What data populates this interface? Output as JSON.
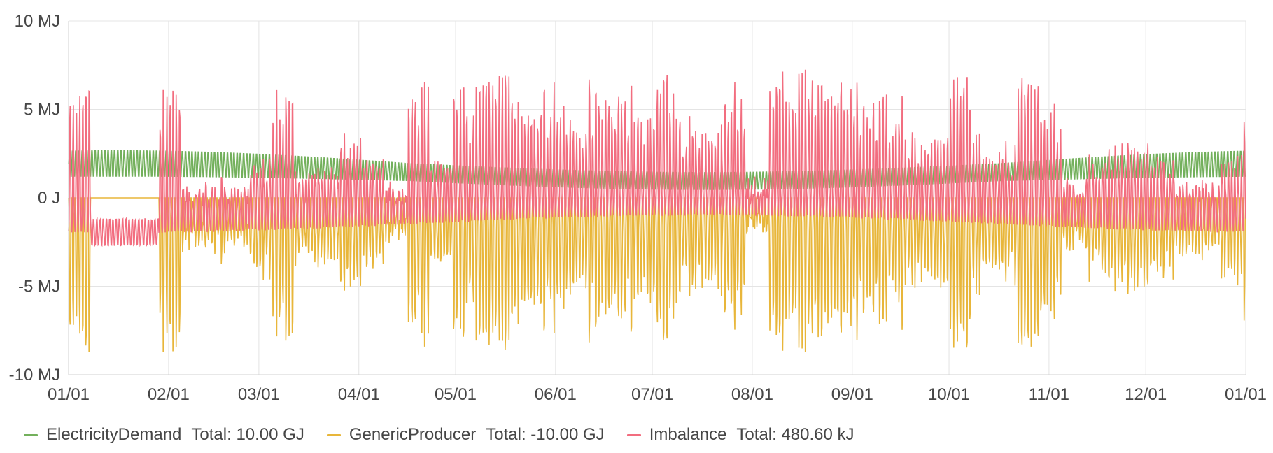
{
  "chart_data": {
    "type": "line",
    "title": "",
    "xlabel": "",
    "ylabel": "",
    "ylim": [
      -10,
      10
    ],
    "y_unit": "MJ",
    "y_ticks": [
      {
        "value": 10,
        "label": "10 MJ"
      },
      {
        "value": 5,
        "label": "5 MJ"
      },
      {
        "value": 0,
        "label": "0 J"
      },
      {
        "value": -5,
        "label": "-5 MJ"
      },
      {
        "value": -10,
        "label": "-10 MJ"
      }
    ],
    "x_ticks": [
      "01/01",
      "02/01",
      "03/01",
      "04/01",
      "05/01",
      "06/01",
      "07/01",
      "08/01",
      "09/01",
      "10/01",
      "11/01",
      "12/01",
      "01/01"
    ],
    "x_range": [
      "2023-01-01",
      "2024-01-01"
    ],
    "grid": true,
    "legend_position": "bottom-left",
    "series": [
      {
        "name": "ElectricityDemand",
        "total_label": "Total: 10.00 GJ",
        "color": "#73b05c",
        "min": 0.5,
        "max": 2.5
      },
      {
        "name": "GenericProducer",
        "total_label": "Total: -10.00 GJ",
        "color": "#e8b63a",
        "min": -8.7,
        "max": 0
      },
      {
        "name": "Imbalance",
        "total_label": "Total: 480.60 kJ",
        "color": "#f26d7f",
        "min": -2.5,
        "max": 7.4
      }
    ],
    "weekly_peaks_MJ": [
      6.7,
      0.0,
      0.0,
      0.0,
      6.6,
      0.5,
      1.2,
      0.8,
      2.3,
      6.2,
      1.5,
      2.1,
      3.8,
      2.2,
      0.6,
      6.9,
      2.5,
      6.3,
      6.6,
      7.0,
      4.7,
      6.7,
      4.4,
      6.7,
      6.5,
      4.7,
      7.3,
      4.7,
      4.2,
      6.5,
      0.5,
      7.2,
      7.3,
      6.4,
      7.0,
      5.8,
      6.0,
      3.8,
      3.4,
      6.9,
      3.8,
      3.4,
      6.9,
      5.3,
      1.2,
      2.5,
      3.2,
      3.3,
      2.4,
      1.2,
      1.0,
      2.4,
      6.8,
      3.5
    ]
  },
  "legend": [
    {
      "name": "ElectricityDemand",
      "total": "Total: 10.00 GJ"
    },
    {
      "name": "GenericProducer",
      "total": "Total: -10.00 GJ"
    },
    {
      "name": "Imbalance",
      "total": "Total: 480.60 kJ"
    }
  ]
}
